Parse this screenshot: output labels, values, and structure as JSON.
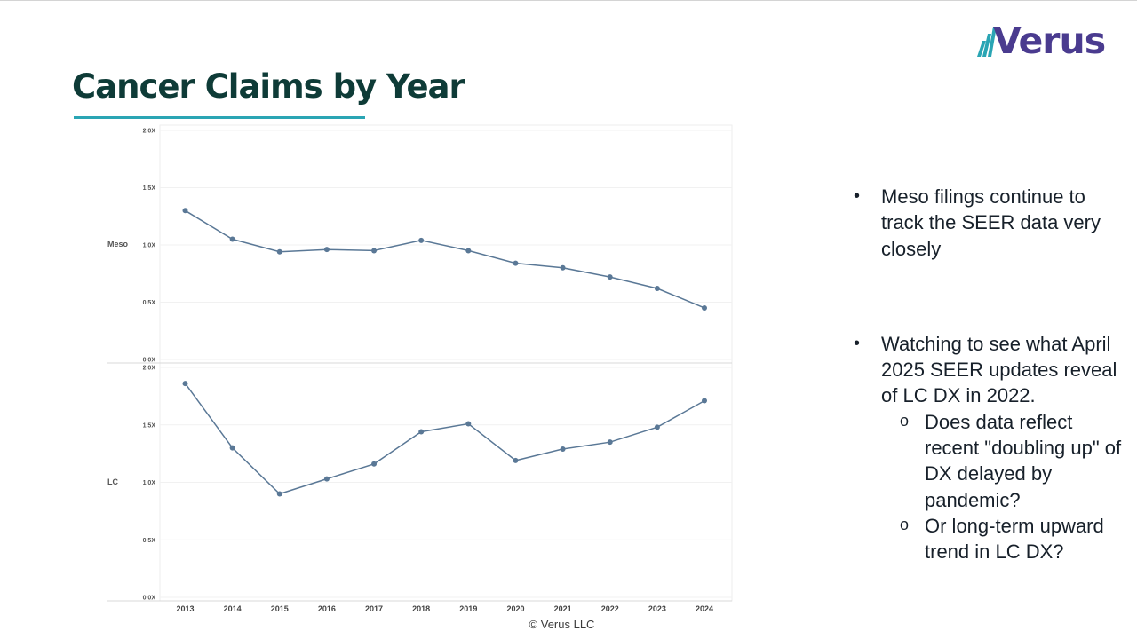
{
  "title": "Cancer Claims by Year",
  "logo": {
    "text": "Verus"
  },
  "footer": "© Verus LLC",
  "bullets": [
    {
      "text": "Meso filings continue to track the SEER data very closely",
      "sub": []
    },
    {
      "text": "Watching to see what April 2025 SEER updates reveal of LC DX in 2022.",
      "sub": [
        "Does data reflect recent \"doubling up\" of DX delayed by pandemic?",
        "Or long-term upward trend in LC DX?"
      ]
    }
  ],
  "colors": {
    "title": "#0e3b37",
    "underline": "#2aa5b4",
    "line": "#5a7896",
    "logo": "#4a3b8f",
    "logo_accent": "#2aa5b4"
  },
  "chart_data": [
    {
      "type": "line",
      "row_label": "Meso",
      "x": [
        "2013",
        "2014",
        "2015",
        "2016",
        "2017",
        "2018",
        "2019",
        "2020",
        "2021",
        "2022",
        "2023",
        "2024"
      ],
      "values": [
        1.3,
        1.05,
        0.94,
        0.96,
        0.95,
        1.04,
        0.95,
        0.84,
        0.8,
        0.72,
        0.62,
        0.45
      ],
      "yticks": [
        "2.0X",
        "1.5X",
        "1.0X",
        "0.5X",
        "0.0X"
      ],
      "ylim": [
        0,
        2
      ]
    },
    {
      "type": "line",
      "row_label": "LC",
      "x": [
        "2013",
        "2014",
        "2015",
        "2016",
        "2017",
        "2018",
        "2019",
        "2020",
        "2021",
        "2022",
        "2023",
        "2024"
      ],
      "values": [
        1.86,
        1.3,
        0.9,
        1.03,
        1.16,
        1.44,
        1.51,
        1.19,
        1.29,
        1.35,
        1.48,
        1.71
      ],
      "yticks": [
        "2.0X",
        "1.5X",
        "1.0X",
        "0.5X",
        "0.0X"
      ],
      "ylim": [
        0,
        2
      ]
    }
  ]
}
